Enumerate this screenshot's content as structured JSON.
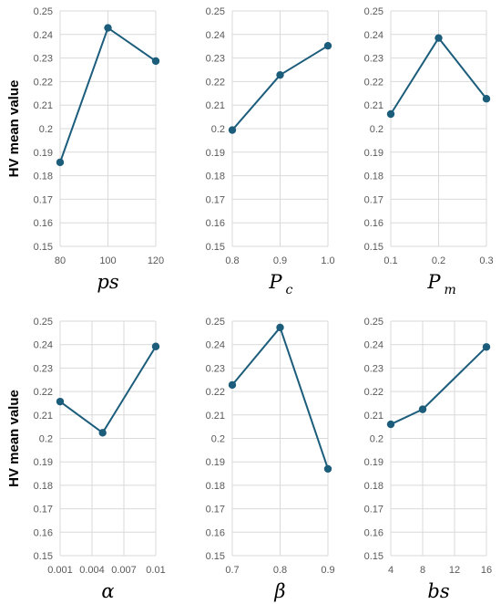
{
  "chart_data": [
    {
      "type": "line",
      "ylabel": "HV mean value",
      "xlabel": "ps",
      "xlabel_sub": "",
      "categories": [
        "80",
        "100",
        "120"
      ],
      "values": [
        0.1857,
        0.2428,
        0.2287
      ],
      "ylim": [
        0.15,
        0.25
      ],
      "yticks": [
        "0.15",
        "0.16",
        "0.17",
        "0.18",
        "0.19",
        "0.2",
        "0.21",
        "0.22",
        "0.23",
        "0.24",
        "0.25"
      ],
      "grid": true
    },
    {
      "type": "line",
      "ylabel": "",
      "xlabel": "P",
      "xlabel_sub": "c",
      "categories": [
        "0.8",
        "0.9",
        "1.0"
      ],
      "values": [
        0.1994,
        0.2228,
        0.2352
      ],
      "ylim": [
        0.15,
        0.25
      ],
      "yticks": [
        "0.15",
        "0.16",
        "0.17",
        "0.18",
        "0.19",
        "0.2",
        "0.21",
        "0.22",
        "0.23",
        "0.24",
        "0.25"
      ],
      "grid": true
    },
    {
      "type": "line",
      "ylabel": "",
      "xlabel": "P",
      "xlabel_sub": "m",
      "categories": [
        "0.1",
        "0.2",
        "0.3"
      ],
      "values": [
        0.2062,
        0.2385,
        0.2127
      ],
      "ylim": [
        0.15,
        0.25
      ],
      "yticks": [
        "0.15",
        "0.16",
        "0.17",
        "0.18",
        "0.19",
        "0.2",
        "0.21",
        "0.22",
        "0.23",
        "0.24",
        "0.25"
      ],
      "grid": true
    },
    {
      "type": "line",
      "ylabel": "HV mean value",
      "xlabel": "α",
      "xlabel_sub": "",
      "categories": [
        "0.001",
        "0.004",
        "0.007",
        "0.01"
      ],
      "x": [
        0.001,
        0.005,
        0.01
      ],
      "values": [
        0.2157,
        0.2024,
        0.2392
      ],
      "xlim": [
        0.001,
        0.01
      ],
      "ylim": [
        0.15,
        0.25
      ],
      "yticks": [
        "0.15",
        "0.16",
        "0.17",
        "0.18",
        "0.19",
        "0.2",
        "0.21",
        "0.22",
        "0.23",
        "0.24",
        "0.25"
      ],
      "grid": true
    },
    {
      "type": "line",
      "ylabel": "",
      "xlabel": "β",
      "xlabel_sub": "",
      "categories": [
        "0.7",
        "0.8",
        "0.9"
      ],
      "values": [
        0.2228,
        0.2473,
        0.187
      ],
      "ylim": [
        0.15,
        0.25
      ],
      "yticks": [
        "0.15",
        "0.16",
        "0.17",
        "0.18",
        "0.19",
        "0.2",
        "0.21",
        "0.22",
        "0.23",
        "0.24",
        "0.25"
      ],
      "grid": true
    },
    {
      "type": "line",
      "ylabel": "",
      "xlabel": "bs",
      "xlabel_sub": "",
      "categories": [
        "4",
        "8",
        "12",
        "16"
      ],
      "x": [
        4,
        8,
        16
      ],
      "values": [
        0.206,
        0.2124,
        0.239
      ],
      "xlim": [
        4,
        16
      ],
      "ylim": [
        0.15,
        0.25
      ],
      "yticks": [
        "0.15",
        "0.16",
        "0.17",
        "0.18",
        "0.19",
        "0.2",
        "0.21",
        "0.22",
        "0.23",
        "0.24",
        "0.25"
      ],
      "grid": true
    }
  ],
  "colors": {
    "line": "#1c5d7c",
    "marker": "#1c5d7c",
    "grid": "#d9d9d9",
    "tick": "#595959"
  }
}
